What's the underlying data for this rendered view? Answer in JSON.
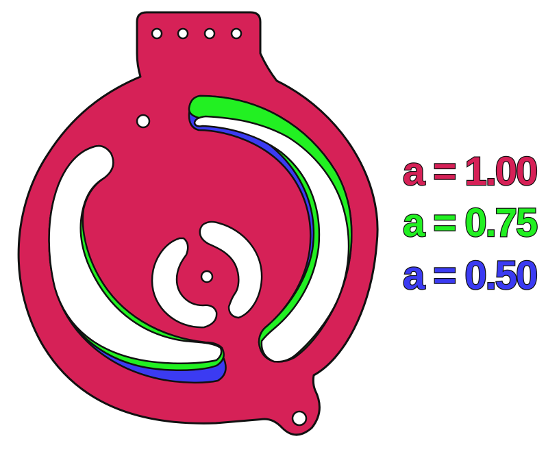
{
  "colors": {
    "plate": "#d62157",
    "outline": "#111111",
    "hole": "#ffffff",
    "series_a100": "#d62157",
    "series_a075": "#22f022",
    "series_a050": "#3b3bf2"
  },
  "legend": [
    {
      "text": "a = 1.00",
      "color": "#d62157"
    },
    {
      "text": "a = 0.75",
      "color": "#22f022"
    },
    {
      "text": "a = 0.50",
      "color": "#3b3bf2"
    }
  ]
}
